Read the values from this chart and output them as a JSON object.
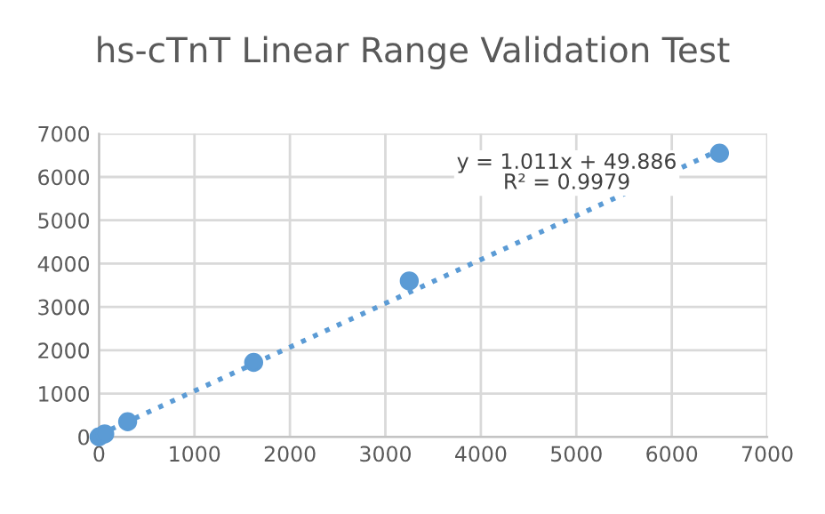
{
  "chart_data": {
    "type": "scatter",
    "title": "hs-cTnT Linear Range Validation Test",
    "series": [
      {
        "color": "#5b9bd5",
        "marker": "circle",
        "x": [
          0,
          60,
          300,
          1620,
          3250,
          6500
        ],
        "values": [
          0,
          70,
          350,
          1720,
          3600,
          6550
        ]
      },
      {
        "type": "line",
        "color": "#5b9bd5",
        "line_style": "dotted",
        "x": [
          0,
          6500
        ],
        "values": [
          50,
          6620
        ]
      }
    ],
    "annotations": [
      "y = 1.011x + 49.886\nR² = 0.9979"
    ],
    "xlim": [
      0,
      7000
    ],
    "ylim": [
      0,
      7000
    ],
    "xticks": [
      0,
      1000,
      2000,
      3000,
      4000,
      5000,
      6000,
      7000
    ],
    "yticks": [
      0,
      1000,
      2000,
      3000,
      4000,
      5000,
      6000,
      7000
    ],
    "grid": true
  }
}
